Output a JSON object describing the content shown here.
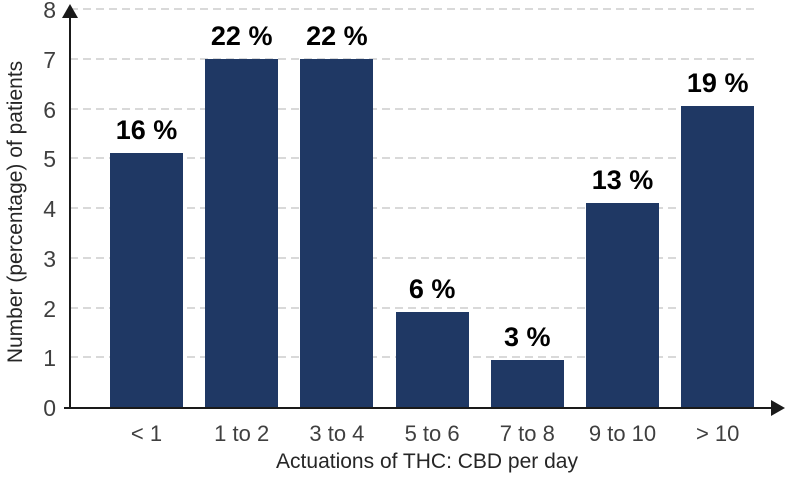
{
  "chart_data": {
    "type": "bar",
    "title": "",
    "categories": [
      "< 1",
      "1 to 2",
      "3 to 4",
      "5 to 6",
      "7 to 8",
      "9 to 10",
      "> 10"
    ],
    "values": [
      5.1,
      7,
      7,
      1.9,
      0.95,
      4.1,
      6.05
    ],
    "bar_labels": [
      "16 %",
      "22 %",
      "22 %",
      "6 %",
      "3 %",
      "13 %",
      "19 %"
    ],
    "xlabel": "Actuations of THC: CBD per day",
    "ylabel": "Number (percentage) of patients",
    "ylim": [
      0,
      8
    ],
    "yticks": [
      0,
      1,
      2,
      3,
      4,
      5,
      6,
      7,
      8
    ],
    "legend": "none",
    "grid": "horizontal-dashed",
    "colors": {
      "bar": "#1f3864",
      "gridline": "#d9d9d9",
      "axis": "#1a1a1a",
      "bar_label_text": "#000000",
      "tick_text": "#3f3f3f",
      "background": "#ffffff"
    }
  }
}
